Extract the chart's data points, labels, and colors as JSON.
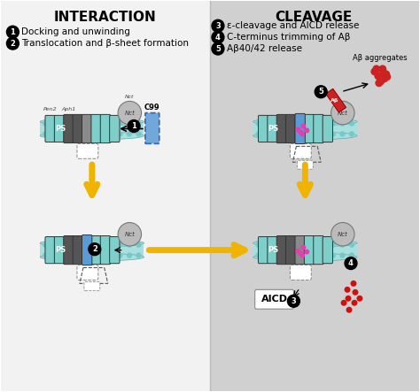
{
  "bg_left": "#f2f2f2",
  "bg_right": "#d0d0d0",
  "title_left": "INTERACTION",
  "title_right": "CLEAVAGE",
  "step1_label": "Docking and unwinding",
  "step2_label": "Translocation and β-sheet formation",
  "step3_label": "ε-cleavage and AICD release",
  "step4_label": "C-terminus trimming of Aβ",
  "step5_label": "Aβ40/42 release",
  "membrane_color": "#a8e0e0",
  "membrane_dot_color": "#78c8c8",
  "helix_teal": "#7ececa",
  "helix_blue": "#5b9bd5",
  "helix_gray": "#8a8a8a",
  "helix_dark": "#555555",
  "arrow_yellow": "#f0b400",
  "pink_dot": "#e040b0",
  "red_dot": "#cc1111",
  "nct_color": "#bbbbbb",
  "c99_color": "#5b9bd5",
  "ab_red": "#cc2222"
}
